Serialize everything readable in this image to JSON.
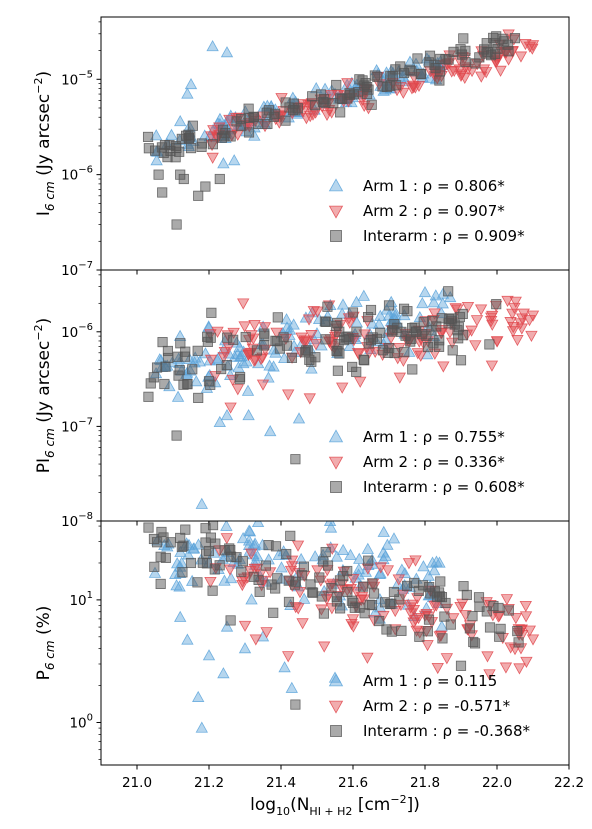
{
  "chart_data": {
    "type": "scatter",
    "xlabel": "log10(NHI+H2 [cm−2])",
    "xlabel_parts": {
      "base": "log",
      "base_sub": "10",
      "open": "(N",
      "sub": "HI + H2",
      "mid": " [cm",
      "sup": "−2",
      "close": "])"
    },
    "xlim": [
      20.9,
      22.2
    ],
    "xticks": [
      "21.0",
      "21.2",
      "21.4",
      "21.6",
      "21.8",
      "22.0",
      "22.2"
    ],
    "xtick_values": [
      21.0,
      21.2,
      21.4,
      21.6,
      21.8,
      22.0,
      22.2
    ],
    "series_style": [
      {
        "key": "arm1",
        "marker": "triangle-up",
        "color": "#5DA5DA"
      },
      {
        "key": "arm2",
        "marker": "triangle-down",
        "color": "#E0474C"
      },
      {
        "key": "interarm",
        "marker": "square",
        "color": "#555555"
      }
    ],
    "panels": [
      {
        "id": "I6cm",
        "ylabel": "I6cm (Jy arcsec−2)",
        "ylabel_parts": {
          "main": "I",
          "sub": "6 cm",
          "rest": " (Jy arcsec",
          "sup": "−2",
          "end": ")"
        },
        "yscale": "log",
        "ylim": [
          1e-07,
          4.5e-05
        ],
        "yticks": [
          {
            "value": 1e-05,
            "label_base": "10",
            "label_exp": "−5"
          },
          {
            "value": 1e-06,
            "label_base": "10",
            "label_exp": "−6"
          },
          {
            "value": 1e-07,
            "label_base": "10",
            "label_exp": "−7"
          }
        ],
        "legend": [
          {
            "series": "Arm 1",
            "text": "Arm 1 : ρ = 0.806*"
          },
          {
            "series": "Arm 2",
            "text": "Arm 2 : ρ = 0.907*"
          },
          {
            "series": "Interarm",
            "text": "Interarm : ρ = 0.909*"
          }
        ],
        "series": [
          {
            "name": "Arm 1",
            "trend": {
              "x0": 21.05,
              "y0": 1.8e-06,
              "x1": 21.85,
              "y1": 1.5e-05
            },
            "extra": [
              [
                21.21,
                2.2e-05
              ],
              [
                21.25,
                1.9e-05
              ],
              [
                21.14,
                7e-06
              ],
              [
                21.15,
                8.8e-06
              ],
              [
                21.12,
                3.6e-06
              ],
              [
                21.24,
                1.3e-06
              ],
              [
                21.27,
                1.4e-06
              ]
            ]
          },
          {
            "name": "Arm 2",
            "trend": {
              "x0": 21.2,
              "y0": 2.6e-06,
              "x1": 22.1,
              "y1": 2.2e-05
            },
            "extra": [
              [
                22.1,
                2.3e-05
              ],
              [
                21.97,
                1.2e-05
              ],
              [
                21.9,
                1.1e-05
              ],
              [
                22.0,
                1.6e-05
              ]
            ]
          },
          {
            "name": "Interarm",
            "trend": {
              "x0": 21.03,
              "y0": 1.6e-06,
              "x1": 22.06,
              "y1": 2.6e-05
            },
            "extra": [
              [
                21.11,
                3e-07
              ],
              [
                21.07,
                6.5e-07
              ],
              [
                21.17,
                6e-07
              ],
              [
                21.13,
                9e-07
              ],
              [
                21.12,
                1e-06
              ],
              [
                21.19,
                7.5e-07
              ],
              [
                21.23,
                9e-07
              ],
              [
                21.06,
                1e-06
              ],
              [
                22.05,
                2.7e-05
              ],
              [
                22.02,
                2.5e-05
              ]
            ]
          }
        ]
      },
      {
        "id": "PI6cm",
        "ylabel": "PI6cm (Jy arcsec−2)",
        "ylabel_parts": {
          "main": "PI",
          "sub": "6 cm",
          "rest": " (Jy arcsec",
          "sup": "−2",
          "end": ")"
        },
        "yscale": "log",
        "ylim": [
          1e-08,
          4.5e-06
        ],
        "yticks": [
          {
            "value": 1e-06,
            "label_base": "10",
            "label_exp": "−6"
          },
          {
            "value": 1e-07,
            "label_base": "10",
            "label_exp": "−7"
          },
          {
            "value": 1e-08,
            "label_base": "10",
            "label_exp": "−8"
          }
        ],
        "legend": [
          {
            "series": "Arm 1",
            "text": "Arm 1 : ρ = 0.755*"
          },
          {
            "series": "Arm 2",
            "text": "Arm 2 : ρ = 0.336*"
          },
          {
            "series": "Interarm",
            "text": "Interarm : ρ = 0.608*"
          }
        ],
        "series": [
          {
            "name": "Arm 1",
            "trend": {
              "x0": 21.05,
              "y0": 3.5e-07,
              "x1": 21.85,
              "y1": 1.6e-06
            },
            "extra": [
              [
                21.18,
                1.5e-08
              ],
              [
                21.23,
                1.1e-07
              ],
              [
                21.31,
                1.3e-07
              ],
              [
                21.37,
                8.8e-08
              ],
              [
                21.45,
                1.2e-07
              ],
              [
                21.25,
                1.3e-07
              ],
              [
                21.8,
                2.6e-06
              ],
              [
                21.83,
                2.4e-06
              ],
              [
                21.85,
                2.5e-06
              ],
              [
                21.87,
                2.3e-06
              ]
            ]
          },
          {
            "name": "Arm 2",
            "trend": {
              "x0": 21.2,
              "y0": 6e-07,
              "x1": 22.1,
              "y1": 1.3e-06
            },
            "extra": [
              [
                21.26,
                1.6e-07
              ],
              [
                21.28,
                2.5e-07
              ],
              [
                21.35,
                2.8e-07
              ],
              [
                21.42,
                2.2e-07
              ],
              [
                21.48,
                2e-07
              ],
              [
                21.57,
                2.6e-07
              ],
              [
                21.62,
                3e-07
              ],
              [
                21.74,
                5e-07
              ],
              [
                21.78,
                6e-07
              ],
              [
                22.0,
                8e-07
              ],
              [
                22.07,
                1.4e-06
              ],
              [
                22.1,
                1.5e-06
              ]
            ]
          },
          {
            "name": "Interarm",
            "trend": {
              "x0": 21.03,
              "y0": 4e-07,
              "x1": 22.0,
              "y1": 1.3e-06
            },
            "extra": [
              [
                21.11,
                8e-08
              ],
              [
                21.44,
                4.5e-08
              ],
              [
                21.17,
                2e-07
              ],
              [
                21.14,
                2.8e-07
              ],
              [
                21.2,
                3e-07
              ],
              [
                21.6,
                1.6e-06
              ],
              [
                21.65,
                1.7e-06
              ],
              [
                21.7,
                1.9e-06
              ],
              [
                21.9,
                5e-07
              ],
              [
                21.82,
                1.3e-06
              ]
            ]
          }
        ]
      },
      {
        "id": "P6cm",
        "ylabel": "P6cm (%)",
        "ylabel_parts": {
          "main": "P",
          "sub": "6 cm",
          "rest": " (%)",
          "sup": "",
          "end": ""
        },
        "yscale": "log",
        "ylim": [
          0.45,
          44
        ],
        "yticks": [
          {
            "value": 10,
            "label_base": "10",
            "label_exp": "1"
          },
          {
            "value": 1,
            "label_base": "10",
            "label_exp": "0"
          }
        ],
        "legend": [
          {
            "series": "Arm 1",
            "text": "Arm 1 : ρ = 0.115"
          },
          {
            "series": "Arm 2",
            "text": "Arm 2 : ρ = -0.571*"
          },
          {
            "series": "Interarm",
            "text": "Interarm : ρ = -0.368*"
          }
        ],
        "series": [
          {
            "name": "Arm 1",
            "trend": {
              "x0": 21.05,
              "y0": 26,
              "x1": 21.85,
              "y1": 13
            },
            "extra": [
              [
                21.18,
                0.9
              ],
              [
                21.17,
                1.6
              ],
              [
                21.2,
                3.5
              ],
              [
                21.24,
                2.5
              ],
              [
                21.14,
                4.7
              ],
              [
                21.12,
                7.2
              ],
              [
                21.41,
                2.8
              ],
              [
                21.43,
                1.9
              ],
              [
                21.55,
                2.3
              ],
              [
                21.25,
                6
              ],
              [
                21.3,
                4
              ],
              [
                21.35,
                5
              ],
              [
                21.05,
                16.5
              ]
            ]
          },
          {
            "name": "Arm 2",
            "trend": {
              "x0": 21.2,
              "y0": 20,
              "x1": 22.1,
              "y1": 5.5
            },
            "extra": [
              [
                21.3,
                6.2
              ],
              [
                21.33,
                4.8
              ],
              [
                21.36,
                5.5
              ],
              [
                21.42,
                3.5
              ],
              [
                21.46,
                6.5
              ],
              [
                21.52,
                4.2
              ],
              [
                21.6,
                7
              ],
              [
                21.64,
                3.4
              ],
              [
                21.8,
                7.5
              ],
              [
                21.92,
                5.8
              ],
              [
                22.05,
                4
              ],
              [
                22.1,
                4.8
              ],
              [
                22.07,
                5.2
              ],
              [
                22.08,
                9
              ]
            ]
          },
          {
            "name": "Interarm",
            "trend": {
              "x0": 21.03,
              "y0": 28,
              "x1": 22.06,
              "y1": 5.2
            },
            "extra": [
              [
                21.44,
                1.4
              ],
              [
                21.9,
                2.9
              ],
              [
                21.26,
                6.8
              ],
              [
                21.12,
                32
              ],
              [
                21.15,
                20
              ],
              [
                21.08,
                22
              ],
              [
                21.75,
                13
              ],
              [
                21.95,
                10.5
              ],
              [
                22.01,
                5.8
              ],
              [
                22.06,
                4.5
              ]
            ]
          }
        ]
      }
    ]
  }
}
